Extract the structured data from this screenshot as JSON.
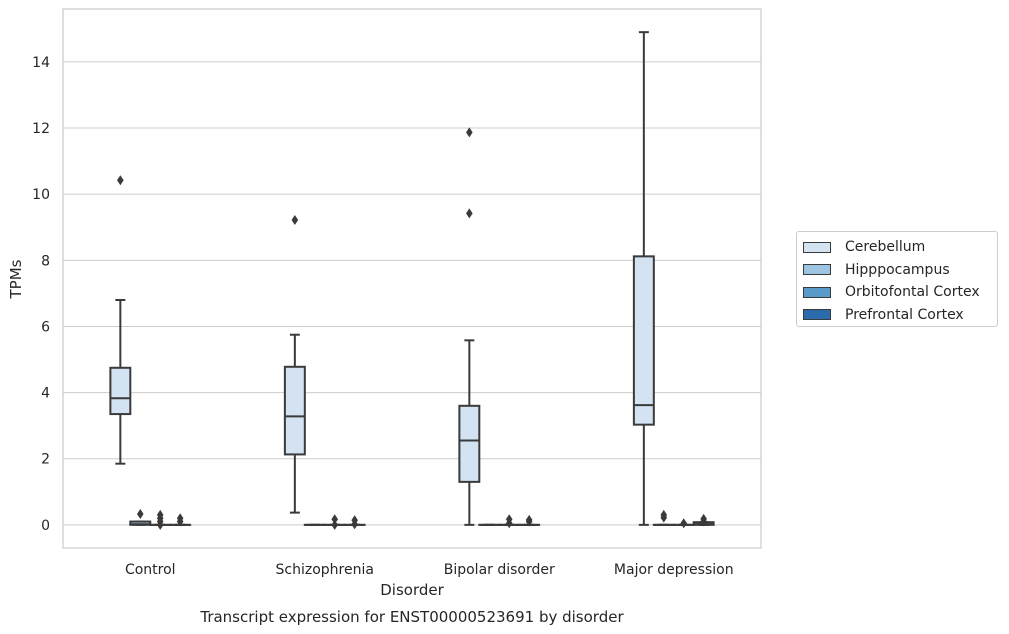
{
  "chart_data": {
    "type": "box",
    "title": "Transcript expression for ENST00000523691 by disorder",
    "xlabel": "Disorder",
    "ylabel": "TPMs",
    "ylim": [
      -0.7,
      15.6
    ],
    "yticks": [
      0,
      2,
      4,
      6,
      8,
      10,
      12,
      14
    ],
    "grid": true,
    "legend_position": "right",
    "categories": [
      "Control",
      "Schizophrenia",
      "Bipolar disorder",
      "Major depression"
    ],
    "series": [
      {
        "name": "Cerebellum",
        "color": "#d3e3f2",
        "boxes": [
          {
            "whisker_low": 1.85,
            "q1": 3.35,
            "median": 3.83,
            "q3": 4.75,
            "whisker_high": 6.8,
            "outliers": [
              10.42
            ]
          },
          {
            "whisker_low": 0.37,
            "q1": 2.13,
            "median": 3.28,
            "q3": 4.78,
            "whisker_high": 5.75,
            "outliers": [
              9.22
            ]
          },
          {
            "whisker_low": 0.0,
            "q1": 1.3,
            "median": 2.55,
            "q3": 3.6,
            "whisker_high": 5.58,
            "outliers": [
              9.42,
              11.87
            ]
          },
          {
            "whisker_low": 0.0,
            "q1": 3.03,
            "median": 3.62,
            "q3": 8.12,
            "whisker_high": 14.9,
            "outliers": []
          }
        ]
      },
      {
        "name": "Hipppocampus",
        "color": "#9dc4e0",
        "boxes": [
          {
            "whisker_low": 0.0,
            "q1": 0.0,
            "median": 0.02,
            "q3": 0.1,
            "whisker_high": 0.1,
            "outliers": [
              0.33
            ]
          },
          {
            "whisker_low": 0.0,
            "q1": 0.0,
            "median": 0.0,
            "q3": 0.0,
            "whisker_high": 0.0,
            "outliers": []
          },
          {
            "whisker_low": 0.0,
            "q1": 0.0,
            "median": 0.0,
            "q3": 0.0,
            "whisker_high": 0.0,
            "outliers": []
          },
          {
            "whisker_low": 0.0,
            "q1": 0.0,
            "median": 0.0,
            "q3": 0.0,
            "whisker_high": 0.0,
            "outliers": [
              0.22,
              0.3
            ]
          }
        ]
      },
      {
        "name": "Orbitofontal Cortex",
        "color": "#5a9ac8",
        "boxes": [
          {
            "whisker_low": 0.0,
            "q1": 0.0,
            "median": 0.0,
            "q3": 0.0,
            "whisker_high": 0.0,
            "outliers": [
              0.0,
              0.1,
              0.2,
              0.3
            ]
          },
          {
            "whisker_low": 0.0,
            "q1": 0.0,
            "median": 0.0,
            "q3": 0.0,
            "whisker_high": 0.0,
            "outliers": [
              0.0,
              0.17
            ]
          },
          {
            "whisker_low": 0.0,
            "q1": 0.0,
            "median": 0.0,
            "q3": 0.0,
            "whisker_high": 0.0,
            "outliers": [
              0.05,
              0.17
            ]
          },
          {
            "whisker_low": 0.0,
            "q1": 0.0,
            "median": 0.0,
            "q3": 0.0,
            "whisker_high": 0.0,
            "outliers": [
              0.05
            ]
          }
        ]
      },
      {
        "name": "Prefrontal Cortex",
        "color": "#2a6aad",
        "boxes": [
          {
            "whisker_low": 0.0,
            "q1": 0.0,
            "median": 0.0,
            "q3": 0.0,
            "whisker_high": 0.0,
            "outliers": [
              0.1,
              0.2
            ]
          },
          {
            "whisker_low": 0.0,
            "q1": 0.0,
            "median": 0.0,
            "q3": 0.0,
            "whisker_high": 0.0,
            "outliers": [
              0.02,
              0.14
            ]
          },
          {
            "whisker_low": 0.0,
            "q1": 0.0,
            "median": 0.0,
            "q3": 0.0,
            "whisker_high": 0.0,
            "outliers": [
              0.1,
              0.15
            ]
          },
          {
            "whisker_low": 0.0,
            "q1": 0.0,
            "median": 0.02,
            "q3": 0.08,
            "whisker_high": 0.08,
            "outliers": [
              0.1,
              0.18
            ]
          }
        ]
      }
    ]
  }
}
